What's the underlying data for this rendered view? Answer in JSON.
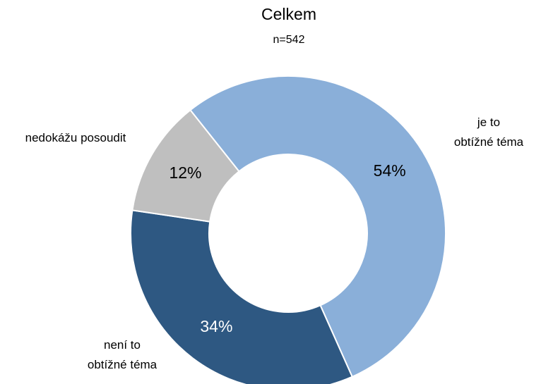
{
  "chart_data": {
    "type": "donut",
    "title": "Celkem",
    "subtitle": "n=542",
    "categories": [
      [
        "je to",
        "obtížné téma"
      ],
      [
        "není to",
        "obtížné téma"
      ],
      [
        "nedokážu posoudit"
      ]
    ],
    "values": [
      54,
      34,
      12
    ],
    "value_labels": [
      "54%",
      "34%",
      "12%"
    ],
    "colors": [
      "#8aafd9",
      "#2e5882",
      "#bfbfbf"
    ],
    "value_label_colors": [
      "#000000",
      "#ffffff",
      "#000000"
    ]
  }
}
